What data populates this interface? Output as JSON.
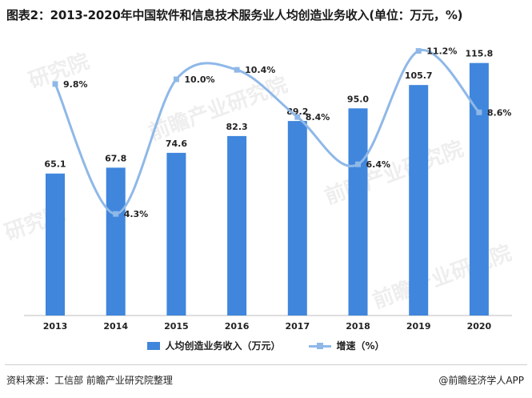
{
  "title": "图表2：2013-2020年中国软件和信息技术服务业人均创造业务收入(单位：万元，%)",
  "source": "资料来源：工信部 前瞻产业研究院整理",
  "brand": "@前瞻经济学人APP",
  "colors": {
    "bar": "#3f86dc",
    "line": "#8fb8e8"
  },
  "chart_data": {
    "type": "bar",
    "categories": [
      "2013",
      "2014",
      "2015",
      "2016",
      "2017",
      "2018",
      "2019",
      "2020"
    ],
    "series": [
      {
        "name": "人均创造业务收入（万元）",
        "type": "bar",
        "axis": "left",
        "values": [
          65.1,
          67.8,
          74.6,
          82.3,
          89.2,
          95.0,
          105.7,
          115.8
        ],
        "labels": [
          "65.1",
          "67.8",
          "74.6",
          "82.3",
          "89.2",
          "95.0",
          "105.7",
          "115.8"
        ]
      },
      {
        "name": "增速（%）",
        "type": "line",
        "axis": "right",
        "values": [
          9.8,
          4.3,
          10.0,
          10.4,
          8.4,
          6.4,
          11.2,
          8.6
        ],
        "labels": [
          "9.8%",
          "4.3%",
          "10.0%",
          "10.4%",
          "8.4%",
          "6.4%",
          "11.2%",
          "8.6%"
        ]
      }
    ],
    "ylim_left": [
      0,
      130
    ],
    "ylim_right": [
      0,
      12
    ],
    "grid": false,
    "legend": "bottom"
  }
}
